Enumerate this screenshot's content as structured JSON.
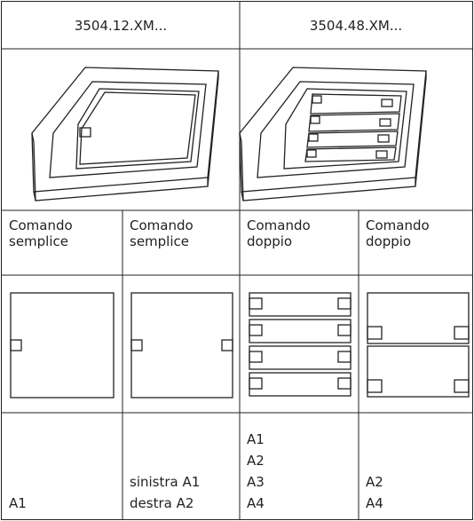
{
  "header": [
    "3504.12.XM...",
    "3504.48.XM..."
  ],
  "labels": [
    "Comando semplice",
    "Comando semplice",
    "Comando doppio",
    "Comando doppio"
  ],
  "addresses": [
    [
      "A1"
    ],
    [
      "sinistra A1",
      "destra A2"
    ],
    [
      "A1",
      "A2",
      "A3",
      "A4"
    ],
    [
      "A2",
      "A4"
    ]
  ]
}
